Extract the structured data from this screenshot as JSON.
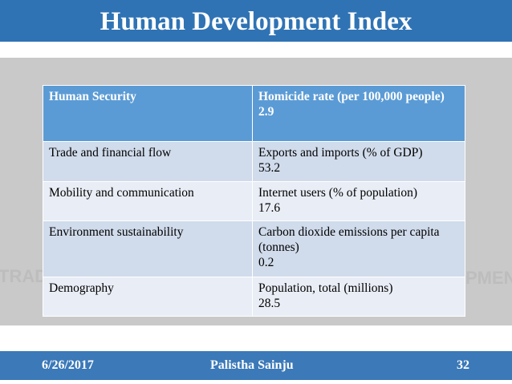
{
  "title": "Human Development Index",
  "table": {
    "header": {
      "left": "Human Security",
      "right_label": "Homicide rate (per 100,000 people)",
      "right_value": "2.9"
    },
    "rows": [
      {
        "left": "Trade and financial flow",
        "label": "Exports and imports (% of GDP)",
        "value": "53.2"
      },
      {
        "left": "Mobility and communication",
        "label": "Internet users (% of population)",
        "value": "17.6"
      },
      {
        "left": "Environment sustainability",
        "label": "Carbon dioxide emissions per capita (tonnes)",
        "value": "0.2"
      },
      {
        "left": "Demography",
        "label": "Population, total (millions)",
        "value": "28.5"
      }
    ]
  },
  "footer": {
    "date": "6/26/2017",
    "author": "Palistha Sainju",
    "page": "32"
  }
}
